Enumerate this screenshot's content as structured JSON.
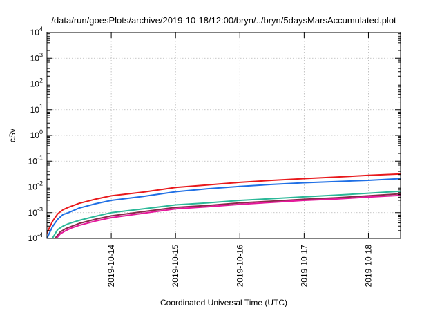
{
  "chart_data": {
    "type": "line",
    "title": "/data/run/goesPlots/archive/2019-10-18/12:00/bryn/../bryn/5daysMarsAccumulated.plot",
    "xlabel": "Coordinated Universal Time (UTC)",
    "ylabel": "cSv",
    "y_scale": "log",
    "ylim": [
      0.0001,
      10000
    ],
    "y_ticks": [
      {
        "value": 0.0001,
        "base": "10",
        "exp": "-4"
      },
      {
        "value": 0.001,
        "base": "10",
        "exp": "-3"
      },
      {
        "value": 0.01,
        "base": "10",
        "exp": "-2"
      },
      {
        "value": 0.1,
        "base": "10",
        "exp": "-1"
      },
      {
        "value": 1,
        "base": "10",
        "exp": "0"
      },
      {
        "value": 10,
        "base": "10",
        "exp": "1"
      },
      {
        "value": 100,
        "base": "10",
        "exp": "2"
      },
      {
        "value": 1000,
        "base": "10",
        "exp": "3"
      },
      {
        "value": 10000,
        "base": "10",
        "exp": "4"
      }
    ],
    "xlim": [
      "2019-10-13T00:00",
      "2019-10-18T12:00"
    ],
    "x_ticks": [
      "2019-10-14",
      "2019-10-15",
      "2019-10-16",
      "2019-10-17",
      "2019-10-18"
    ],
    "grid": true,
    "legend": "none",
    "series": [
      {
        "color": "#e8191c",
        "points": [
          [
            "2019-10-13T00:00",
            0.00016
          ],
          [
            "2019-10-13T02:00",
            0.00045
          ],
          [
            "2019-10-13T04:00",
            0.0009
          ],
          [
            "2019-10-13T06:00",
            0.0013
          ],
          [
            "2019-10-13T08:00",
            0.0016
          ],
          [
            "2019-10-13T12:00",
            0.0023
          ],
          [
            "2019-10-13T18:00",
            0.0033
          ],
          [
            "2019-10-14T00:00",
            0.0045
          ],
          [
            "2019-10-14T12:00",
            0.0063
          ],
          [
            "2019-10-15T00:00",
            0.0095
          ],
          [
            "2019-10-15T12:00",
            0.012
          ],
          [
            "2019-10-16T00:00",
            0.015
          ],
          [
            "2019-10-16T12:00",
            0.018
          ],
          [
            "2019-10-17T00:00",
            0.021
          ],
          [
            "2019-10-17T12:00",
            0.024
          ],
          [
            "2019-10-18T00:00",
            0.028
          ],
          [
            "2019-10-18T12:00",
            0.032
          ]
        ]
      },
      {
        "color": "#1f6fe5",
        "points": [
          [
            "2019-10-13T00:00",
            0.0001
          ],
          [
            "2019-10-13T02:00",
            0.00028
          ],
          [
            "2019-10-13T04:00",
            0.00055
          ],
          [
            "2019-10-13T06:00",
            0.00085
          ],
          [
            "2019-10-13T08:00",
            0.001
          ],
          [
            "2019-10-13T12:00",
            0.0015
          ],
          [
            "2019-10-13T18:00",
            0.0022
          ],
          [
            "2019-10-14T00:00",
            0.003
          ],
          [
            "2019-10-14T12:00",
            0.0043
          ],
          [
            "2019-10-15T00:00",
            0.0065
          ],
          [
            "2019-10-15T12:00",
            0.0085
          ],
          [
            "2019-10-16T00:00",
            0.0105
          ],
          [
            "2019-10-16T12:00",
            0.0125
          ],
          [
            "2019-10-17T00:00",
            0.0145
          ],
          [
            "2019-10-17T12:00",
            0.0162
          ],
          [
            "2019-10-18T00:00",
            0.018
          ],
          [
            "2019-10-18T12:00",
            0.021
          ]
        ]
      },
      {
        "color": "#2ab898",
        "points": [
          [
            "2019-10-13T02:00",
            0.0001
          ],
          [
            "2019-10-13T04:00",
            0.00022
          ],
          [
            "2019-10-13T06:00",
            0.0003
          ],
          [
            "2019-10-13T08:00",
            0.00037
          ],
          [
            "2019-10-13T12:00",
            0.0005
          ],
          [
            "2019-10-13T18:00",
            0.00072
          ],
          [
            "2019-10-14T00:00",
            0.001
          ],
          [
            "2019-10-14T12:00",
            0.0014
          ],
          [
            "2019-10-15T00:00",
            0.002
          ],
          [
            "2019-10-15T12:00",
            0.0024
          ],
          [
            "2019-10-16T00:00",
            0.003
          ],
          [
            "2019-10-16T12:00",
            0.0035
          ],
          [
            "2019-10-17T00:00",
            0.0041
          ],
          [
            "2019-10-17T12:00",
            0.0048
          ],
          [
            "2019-10-18T00:00",
            0.0057
          ],
          [
            "2019-10-18T12:00",
            0.0068
          ]
        ]
      },
      {
        "color": "#8b2a4a",
        "points": [
          [
            "2019-10-13T03:00",
            0.0001
          ],
          [
            "2019-10-13T05:00",
            0.00018
          ],
          [
            "2019-10-13T07:00",
            0.00024
          ],
          [
            "2019-10-13T09:00",
            0.00029
          ],
          [
            "2019-10-13T12:00",
            0.00038
          ],
          [
            "2019-10-13T18:00",
            0.00055
          ],
          [
            "2019-10-14T00:00",
            0.00075
          ],
          [
            "2019-10-14T12:00",
            0.0011
          ],
          [
            "2019-10-15T00:00",
            0.0016
          ],
          [
            "2019-10-15T12:00",
            0.0019
          ],
          [
            "2019-10-16T00:00",
            0.0024
          ],
          [
            "2019-10-16T12:00",
            0.0028
          ],
          [
            "2019-10-17T00:00",
            0.0033
          ],
          [
            "2019-10-17T12:00",
            0.0038
          ],
          [
            "2019-10-18T00:00",
            0.0045
          ],
          [
            "2019-10-18T12:00",
            0.0054
          ]
        ]
      },
      {
        "color": "#e5189c",
        "points": [
          [
            "2019-10-13T03:30",
            0.0001
          ],
          [
            "2019-10-13T05:00",
            0.00015
          ],
          [
            "2019-10-13T07:00",
            0.0002
          ],
          [
            "2019-10-13T09:00",
            0.00025
          ],
          [
            "2019-10-13T12:00",
            0.00032
          ],
          [
            "2019-10-13T18:00",
            0.00047
          ],
          [
            "2019-10-14T00:00",
            0.00064
          ],
          [
            "2019-10-14T12:00",
            0.00095
          ],
          [
            "2019-10-15T00:00",
            0.0014
          ],
          [
            "2019-10-15T12:00",
            0.0017
          ],
          [
            "2019-10-16T00:00",
            0.0021
          ],
          [
            "2019-10-16T12:00",
            0.0025
          ],
          [
            "2019-10-17T00:00",
            0.003
          ],
          [
            "2019-10-17T12:00",
            0.0034
          ],
          [
            "2019-10-18T00:00",
            0.004
          ],
          [
            "2019-10-18T12:00",
            0.0047
          ]
        ]
      }
    ]
  }
}
